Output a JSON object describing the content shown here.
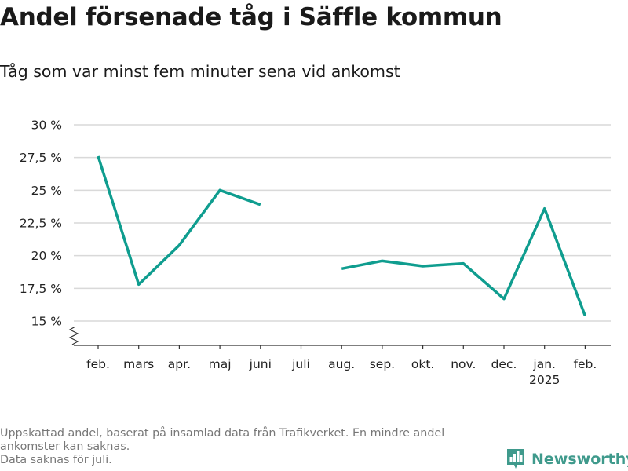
{
  "title": "Andel försenade tåg i Säffle kommun",
  "subtitle": "Tåg som var minst fem minuter sena vid ankomst",
  "footnote": [
    "Uppskattad andel, baserat på insamlad data från Trafikverket. En mindre andel ankomster kan saknas.",
    "Data saknas för juli."
  ],
  "brand": {
    "name": "Newsworthy",
    "color": "#3f9a8c",
    "icon": "bar-chart-logo-icon"
  },
  "colors": {
    "line": "#0f9d8f",
    "grid": "#d9d9d9",
    "axis": "#333333"
  },
  "chart_data": {
    "type": "line",
    "title": "Andel försenade tåg i Säffle kommun",
    "subtitle": "Tåg som var minst fem minuter sena vid ankomst",
    "xlabel": "",
    "ylabel": "",
    "categories": [
      "feb.",
      "mars",
      "apr.",
      "maj",
      "juni",
      "juli",
      "aug.",
      "sep.",
      "okt.",
      "nov.",
      "dec.",
      "jan.",
      "feb."
    ],
    "category_sublabels": [
      "",
      "",
      "",
      "",
      "",
      "",
      "",
      "",
      "",
      "",
      "",
      "2025",
      ""
    ],
    "series": [
      {
        "values": [
          27.6,
          17.8,
          20.8,
          25.0,
          23.9,
          null,
          19.0,
          19.6,
          19.2,
          19.4,
          16.7,
          23.6,
          15.4
        ]
      }
    ],
    "ylim": [
      13.5,
      30
    ],
    "yticks": [
      15,
      17.5,
      20,
      22.5,
      25,
      27.5,
      30
    ],
    "ytick_labels": [
      "15 %",
      "17,5 %",
      "20 %",
      "22,5 %",
      "25 %",
      "27,5 %",
      "30 %"
    ],
    "axis_break": true,
    "grid": true,
    "legend": "none"
  }
}
